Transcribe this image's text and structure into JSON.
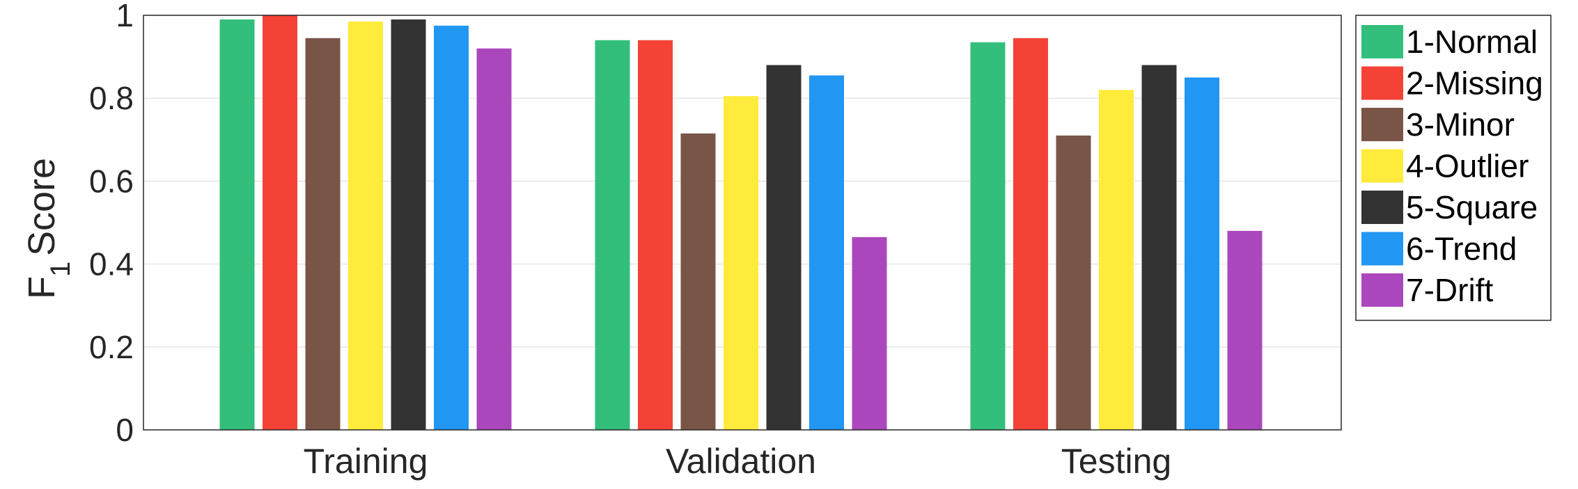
{
  "chart_data": {
    "type": "bar",
    "categories": [
      "Training",
      "Validation",
      "Testing"
    ],
    "series": [
      {
        "name": "1-Normal",
        "color": "#33bf7b",
        "values": [
          0.99,
          0.94,
          0.935
        ]
      },
      {
        "name": "2-Missing",
        "color": "#f44336",
        "values": [
          1.0,
          0.94,
          0.945
        ]
      },
      {
        "name": "3-Minor",
        "color": "#795548",
        "values": [
          0.945,
          0.715,
          0.71
        ]
      },
      {
        "name": "4-Outlier",
        "color": "#ffeb3b",
        "values": [
          0.985,
          0.805,
          0.82
        ]
      },
      {
        "name": "5-Square",
        "color": "#333333",
        "values": [
          0.99,
          0.88,
          0.88
        ]
      },
      {
        "name": "6-Trend",
        "color": "#2196f3",
        "values": [
          0.975,
          0.855,
          0.85
        ]
      },
      {
        "name": "7-Drift",
        "color": "#ab47bc",
        "values": [
          0.92,
          0.465,
          0.48
        ]
      }
    ],
    "ylabel": {
      "main": "F",
      "subscript": "1",
      "rest": "Score"
    },
    "ylim": [
      0,
      1
    ],
    "yticks": [
      "0",
      "0.2",
      "0.4",
      "0.6",
      "0.8",
      "1"
    ],
    "grid": "horizontal",
    "legend": "right"
  }
}
